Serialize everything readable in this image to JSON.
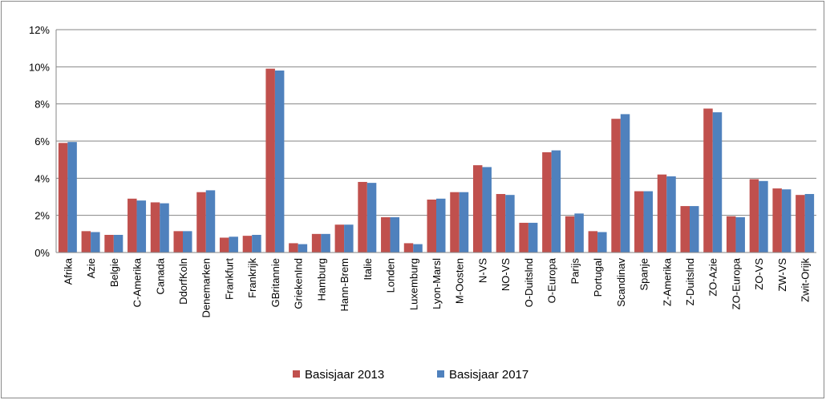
{
  "chart_data": {
    "type": "bar",
    "categories": [
      "Afrika",
      "Azie",
      "Belgie",
      "C-Amerika",
      "Canada",
      "DdorfKoln",
      "Denemarken",
      "Frankfurt",
      "Frankrijk",
      "GBritannie",
      "GriekenInd",
      "Hamburg",
      "Hann-Brem",
      "Italie",
      "Londen",
      "Luxemburg",
      "Lyon-Marsl",
      "M-Oosten",
      "N-VS",
      "NO-VS",
      "O-Duitslnd",
      "O-Europa",
      "Parijs",
      "Portugal",
      "Scandinav",
      "Spanje",
      "Z-Amerika",
      "Z-Duitslnd",
      "ZO-Azie",
      "ZO-Europa",
      "ZO-VS",
      "ZW-VS",
      "Zwit-Orijk"
    ],
    "series": [
      {
        "name": "Basisjaar 2013",
        "color": "#c0504d",
        "values": [
          5.9,
          1.15,
          0.95,
          2.9,
          2.7,
          1.15,
          3.25,
          0.8,
          0.9,
          9.9,
          0.5,
          1.0,
          1.5,
          3.8,
          1.9,
          0.5,
          2.85,
          3.25,
          4.7,
          3.15,
          1.6,
          5.4,
          1.95,
          1.15,
          7.2,
          3.3,
          4.2,
          2.5,
          7.75,
          1.95,
          3.95,
          3.45,
          3.1
        ]
      },
      {
        "name": "Basisjaar 2017",
        "color": "#4f81bd",
        "values": [
          5.95,
          1.1,
          0.95,
          2.8,
          2.65,
          1.15,
          3.35,
          0.85,
          0.95,
          9.8,
          0.45,
          1.0,
          1.5,
          3.75,
          1.9,
          0.45,
          2.9,
          3.25,
          4.6,
          3.1,
          1.6,
          5.5,
          2.1,
          1.1,
          7.45,
          3.3,
          4.1,
          2.5,
          7.55,
          1.9,
          3.85,
          3.4,
          3.15
        ]
      }
    ],
    "ylim": [
      0,
      12
    ],
    "yticks": [
      {
        "value": 0,
        "label": "0%"
      },
      {
        "value": 2,
        "label": "2%"
      },
      {
        "value": 4,
        "label": "4%"
      },
      {
        "value": 6,
        "label": "6%"
      },
      {
        "value": 8,
        "label": "8%"
      },
      {
        "value": 10,
        "label": "10%"
      },
      {
        "value": 12,
        "label": "12%"
      }
    ],
    "grid": true,
    "legend": "bottom"
  }
}
